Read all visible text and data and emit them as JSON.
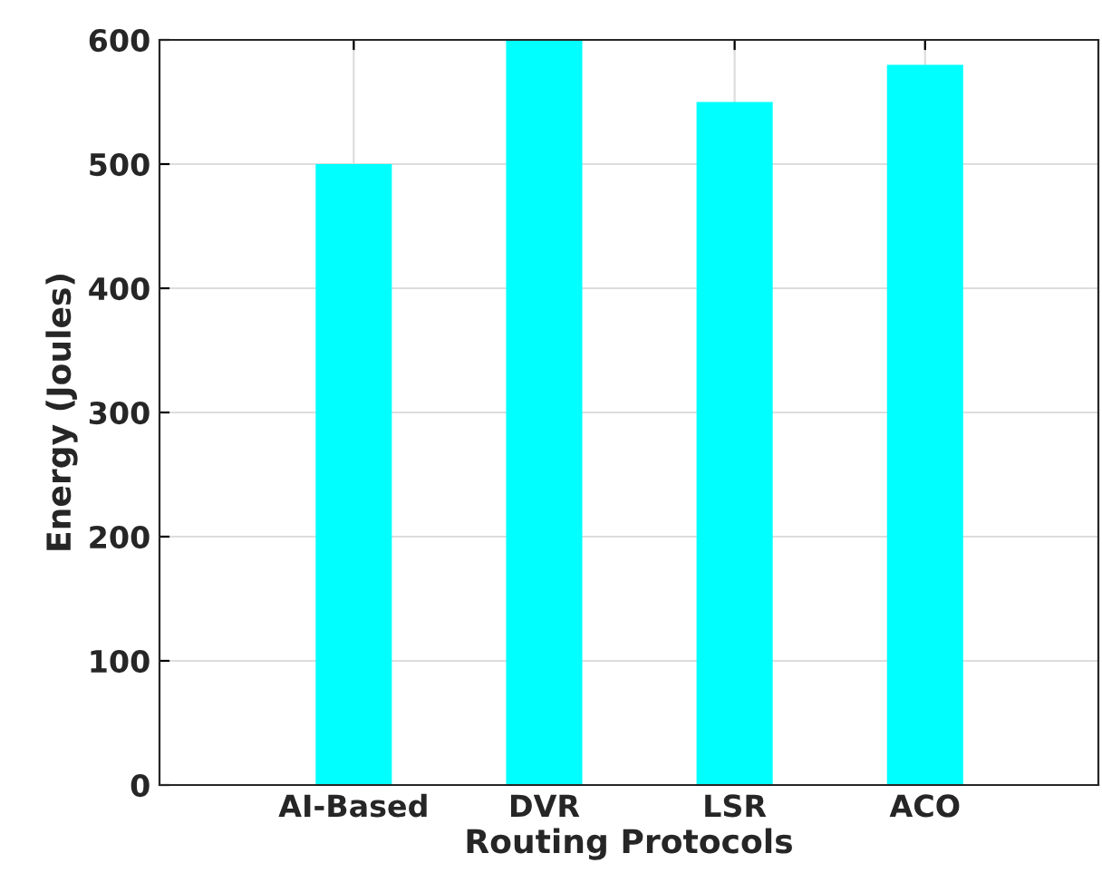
{
  "chart_data": {
    "type": "bar",
    "xlabel": "Routing Protocols",
    "ylabel": "Energy (Joules)",
    "categories": [
      "AI-Based",
      "DVR",
      "LSR",
      "ACO"
    ],
    "values": [
      500,
      600,
      550,
      580
    ],
    "color": "#00ffff",
    "ylim": [
      0,
      600
    ],
    "yticks": [
      0,
      100,
      200,
      300,
      400,
      500,
      600
    ],
    "grid": true
  }
}
